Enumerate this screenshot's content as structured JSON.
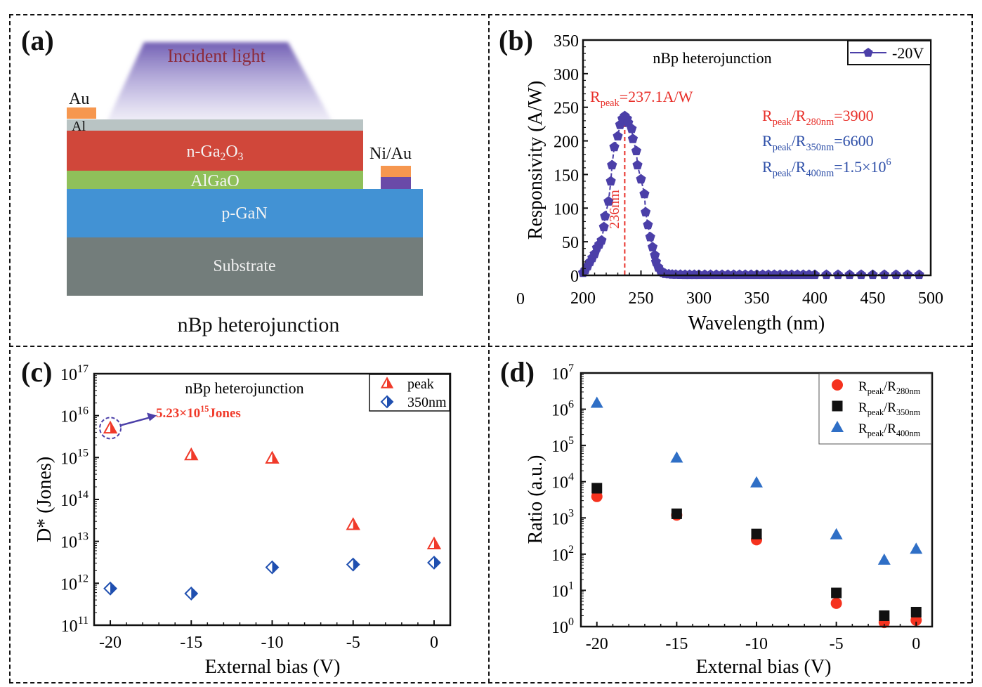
{
  "figure": {
    "panels": [
      {
        "label": "(a)"
      },
      {
        "label": "(b)"
      },
      {
        "label": "(c)"
      },
      {
        "label": "(d)"
      }
    ]
  },
  "schematic": {
    "incident_light": "Incident light",
    "layers": [
      {
        "name": "Al",
        "color": "#b9c4c4"
      },
      {
        "name": "n-Ga",
        "sub1": "2",
        "mid": "O",
        "sub2": "3",
        "color": "#d0473a"
      },
      {
        "name": "AlGaO",
        "color": "#8fc05a"
      },
      {
        "name": "p-GaN",
        "color": "#4292d4"
      },
      {
        "name": "Substrate",
        "color": "#737d7b"
      }
    ],
    "contact_left": {
      "label": "Au",
      "color": "#f6974f"
    },
    "contact_left_lower": "Al",
    "contact_right": {
      "label": "Ni/Au",
      "top_color": "#f6974f",
      "bottom_color": "#6a4aa8"
    },
    "caption": "nBp heterojunction",
    "light_color": "#6a56b0"
  },
  "chart_data": [
    {
      "id": "b",
      "type": "line",
      "title": "nBp heterojunction",
      "xlabel": "Wavelength (nm)",
      "ylabel": "Responsivity (A/W)",
      "xlim": [
        200,
        500
      ],
      "ylim": [
        0,
        350
      ],
      "xticks": [
        200,
        250,
        300,
        350,
        400,
        450,
        500
      ],
      "yticks": [
        0,
        50,
        100,
        150,
        200,
        250,
        300,
        350
      ],
      "extra_xtick_label": "0",
      "legend": {
        "position": "top-right",
        "entries": [
          "-20V"
        ]
      },
      "series": [
        {
          "name": "-20V",
          "color": "#4b3fa8",
          "marker": "pentagon",
          "x": [
            200,
            202,
            204,
            206,
            208,
            210,
            212,
            214,
            216,
            218,
            219,
            222,
            224,
            225,
            227,
            230,
            232,
            234,
            236,
            238,
            239,
            242,
            243,
            246,
            247,
            250,
            253,
            254,
            256,
            258,
            260,
            262,
            263,
            265,
            267,
            269,
            271,
            274,
            277,
            280,
            284,
            288,
            292,
            296,
            300,
            305,
            310,
            315,
            320,
            325,
            330,
            335,
            340,
            345,
            350,
            355,
            360,
            365,
            370,
            375,
            380,
            385,
            390,
            395,
            400,
            410,
            420,
            430,
            440,
            450,
            460,
            470,
            480,
            490
          ],
          "y": [
            4,
            8,
            14,
            20,
            26,
            32,
            41,
            46,
            52,
            72,
            88,
            110,
            140,
            164,
            191,
            207,
            224,
            233,
            237.1,
            233,
            227,
            218,
            203,
            185,
            164,
            143,
            121,
            94,
            75,
            57,
            42,
            30,
            20,
            12,
            7,
            4,
            2.5,
            1.8,
            1.4,
            1.2,
            1.1,
            1,
            1,
            1,
            1,
            1,
            1,
            1,
            1,
            1,
            1,
            1,
            1,
            1,
            1,
            1,
            1,
            1,
            1,
            1,
            1,
            1,
            1,
            1,
            1,
            1,
            1,
            1,
            1,
            1,
            1,
            1,
            1,
            1
          ]
        }
      ],
      "annotations": [
        {
          "text": "R",
          "sub": "peak",
          "rest": "=237.1A/W",
          "color": "#e8302a"
        },
        {
          "text": "236nm",
          "color": "#e8302a",
          "x": 236,
          "type": "vertical-dashed-line"
        },
        {
          "text": "R",
          "sub": "peak",
          "mid": "/R",
          "sub2": "280nm",
          "rest": "=3900",
          "color": "#e8302a"
        },
        {
          "text": "R",
          "sub": "peak",
          "mid": "/R",
          "sub2": "350nm",
          "rest": "=6600",
          "color": "#2e4fa8"
        },
        {
          "text": "R",
          "sub": "peak",
          "mid": "/R",
          "sub2": "400nm",
          "rest": "=1.5×10",
          "sup": "6",
          "color": "#2e4fa8"
        }
      ]
    },
    {
      "id": "c",
      "type": "scatter",
      "title": "nBp heterojunction",
      "xlabel": "External bias (V)",
      "ylabel": "D* (Jones)",
      "xlim": [
        -21,
        1
      ],
      "ylim": [
        100000000000.0,
        1e+17
      ],
      "yscale": "log",
      "xticks": [
        -20,
        -15,
        -10,
        -5,
        0
      ],
      "yticks_exp": [
        11,
        12,
        13,
        14,
        15,
        16,
        17
      ],
      "legend": {
        "position": "top-right",
        "entries": [
          "peak",
          "350nm"
        ]
      },
      "series": [
        {
          "name": "peak",
          "color": "#f03a2a",
          "marker": "half-triangle",
          "x": [
            -20,
            -15,
            -10,
            -5,
            0
          ],
          "y": [
            5230000000000000.0,
            1200000000000000.0,
            1000000000000000.0,
            26000000000000.0,
            9000000000000.0
          ]
        },
        {
          "name": "350nm",
          "color": "#1f4fb0",
          "marker": "half-diamond",
          "x": [
            -20,
            -15,
            -10,
            -5,
            0
          ],
          "y": [
            750000000000.0,
            570000000000.0,
            2400000000000.0,
            2800000000000.0,
            3100000000000.0
          ]
        }
      ],
      "annotation": {
        "text": "5.23×10",
        "sup": "15",
        "rest": "Jones",
        "color": "#f03a2a",
        "arrow_color": "#4b3fa8",
        "x": -20,
        "y": 5230000000000000.0
      }
    },
    {
      "id": "d",
      "type": "scatter",
      "title": "",
      "xlabel": "External bias (V)",
      "ylabel": "Ratio (a.u.)",
      "xlim": [
        -21,
        1
      ],
      "ylim": [
        1,
        10000000.0
      ],
      "yscale": "log",
      "xticks": [
        -20,
        -15,
        -10,
        -5,
        0
      ],
      "yticks_exp": [
        0,
        1,
        2,
        3,
        4,
        5,
        6,
        7
      ],
      "legend": {
        "position": "top-right",
        "entries": [
          "Rpeak/R280nm",
          "Rpeak/R350nm",
          "Rpeak/R400nm"
        ]
      },
      "series": [
        {
          "name": "Rpeak/R280nm",
          "sub": "280nm",
          "color": "#f5321e",
          "marker": "circle",
          "x": [
            -20,
            -15,
            -10,
            -5,
            -2,
            0
          ],
          "y": [
            3900,
            1200,
            250,
            4.4,
            1.3,
            1.5
          ]
        },
        {
          "name": "Rpeak/R350nm",
          "sub": "350nm",
          "color": "#111111",
          "marker": "square",
          "x": [
            -20,
            -15,
            -10,
            -5,
            -2,
            0
          ],
          "y": [
            6600,
            1300,
            360,
            8.5,
            2.0,
            2.5
          ]
        },
        {
          "name": "Rpeak/R400nm",
          "sub": "400nm",
          "color": "#2f6fc6",
          "marker": "triangle",
          "x": [
            -20,
            -15,
            -10,
            -5,
            -2,
            0
          ],
          "y": [
            1500000.0,
            46000.0,
            9500.0,
            350,
            70,
            140
          ]
        }
      ]
    }
  ]
}
